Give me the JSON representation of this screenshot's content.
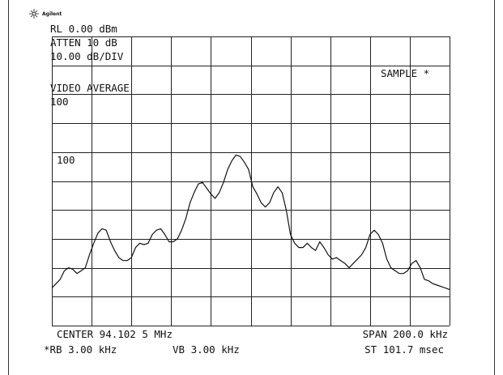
{
  "chart_data": {
    "type": "line",
    "brand": "Agilent",
    "annotations": {
      "reference_level": "RL 0.00 dBm",
      "attenuation": "ATTEN 10 dB",
      "scale": "10.00 dB/DIV",
      "detector": "SAMPLE *",
      "video_average": "VIDEO AVERAGE",
      "average_count_top": "100",
      "average_count_trace": "100",
      "center": "CENTER 94.102 5 MHz",
      "span": "SPAN 200.0 kHz",
      "rbw": "*RB 3.00 kHz",
      "vbw": "VB 3.00 kHz",
      "sweep": "ST 101.7 msec"
    },
    "ylim": [
      -100,
      0
    ],
    "grid_divisions": {
      "x": 10,
      "y": 10
    },
    "color": "#111111",
    "values": [
      -87,
      -85.5,
      -84,
      -81,
      -80,
      -80.5,
      -82,
      -81,
      -80,
      -75.5,
      -71.5,
      -68,
      -66.5,
      -67,
      -71,
      -74,
      -76.5,
      -77.5,
      -77.5,
      -76.5,
      -73,
      -71.5,
      -72,
      -71.5,
      -68.5,
      -67,
      -66.5,
      -68.5,
      -71,
      -71,
      -70,
      -67,
      -63,
      -57.5,
      -54,
      -51,
      -50.5,
      -52.5,
      -54.5,
      -56,
      -54,
      -50.5,
      -46,
      -43,
      -41,
      -41.5,
      -43.5,
      -46,
      -52,
      -54.5,
      -57.5,
      -59,
      -57.5,
      -54,
      -52,
      -54,
      -60,
      -68.5,
      -71.5,
      -73,
      -73,
      -71.5,
      -73,
      -74,
      -71,
      -73,
      -75.5,
      -77,
      -76.5,
      -77.5,
      -78.5,
      -80,
      -78.5,
      -77,
      -75.5,
      -73,
      -68.5,
      -67,
      -68.5,
      -71.5,
      -77,
      -80,
      -81,
      -82,
      -82,
      -81,
      -78.5,
      -77.5,
      -80,
      -84,
      -84.5,
      -85.5,
      -86,
      -86.5,
      -87,
      -87.5
    ]
  }
}
